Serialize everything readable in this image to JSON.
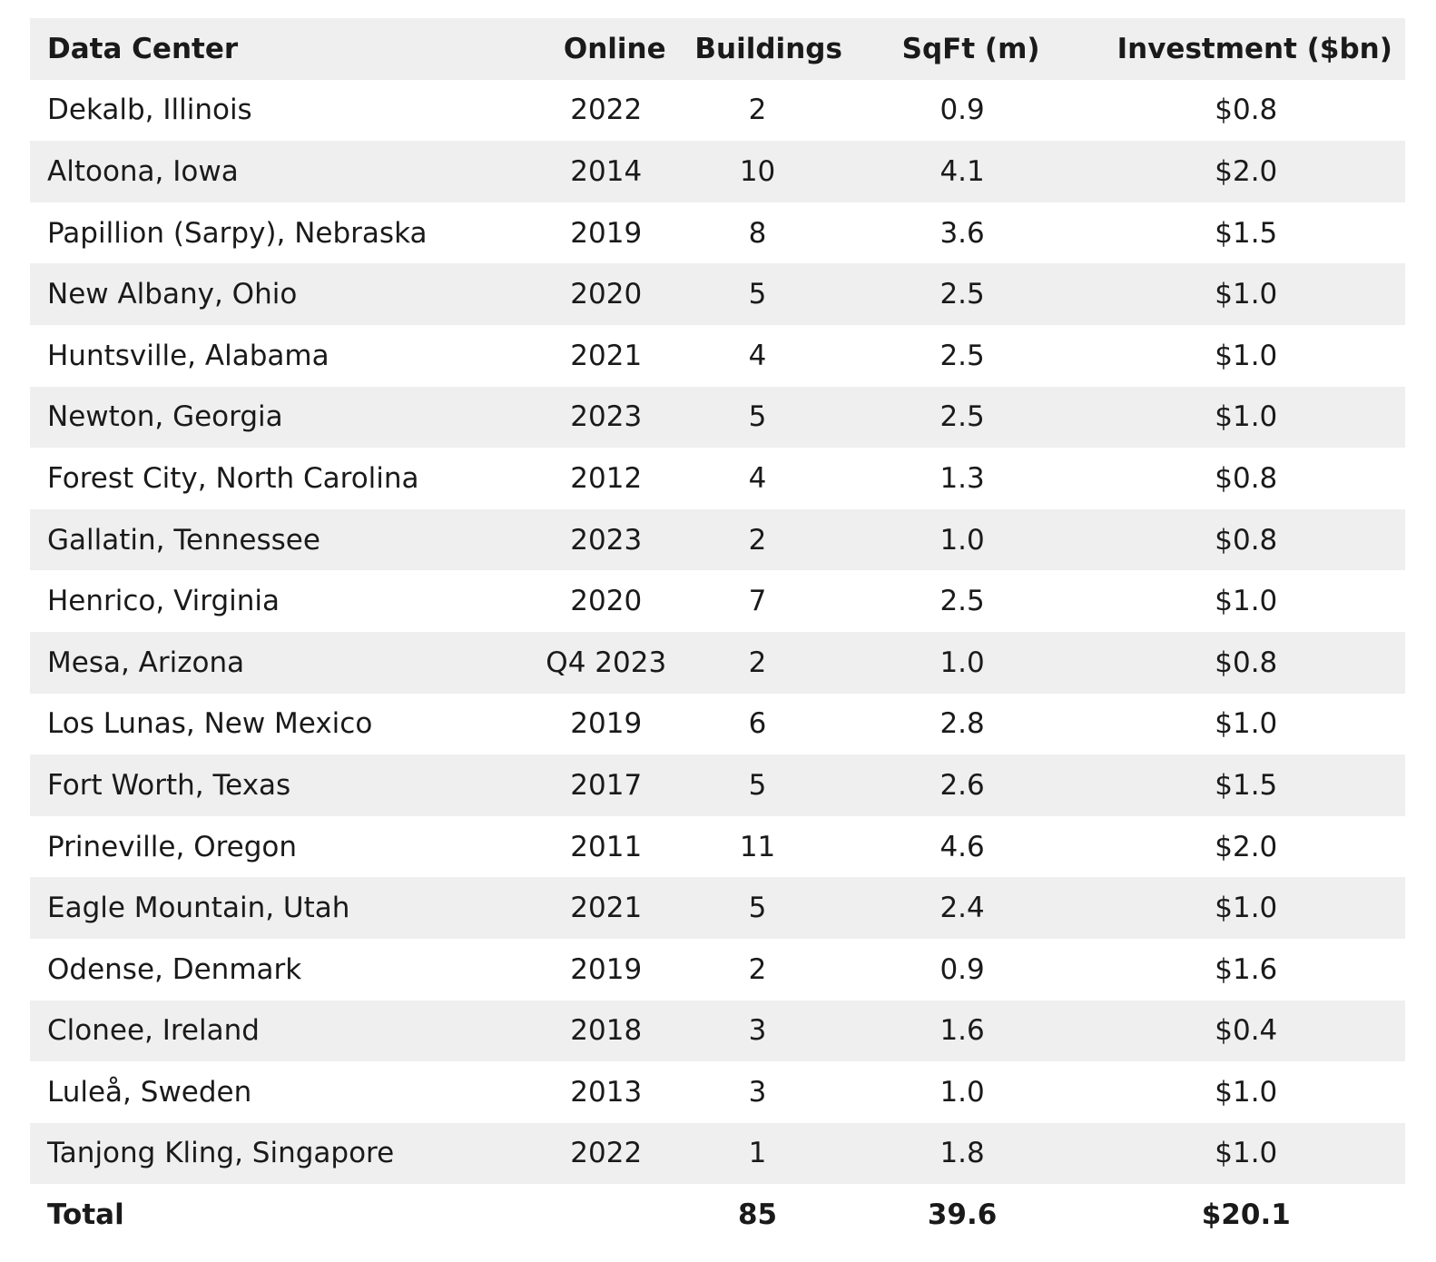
{
  "headers": [
    "Data Center",
    "Online",
    "Buildings",
    "SqFt (m)",
    "Investment ($bn)"
  ],
  "rows": [
    [
      "Dekalb, Illinois",
      "2022",
      "2",
      "0.9",
      "$0.8"
    ],
    [
      "Altoona, Iowa",
      "2014",
      "10",
      "4.1",
      "$2.0"
    ],
    [
      "Papillion (Sarpy), Nebraska",
      "2019",
      "8",
      "3.6",
      "$1.5"
    ],
    [
      "New Albany, Ohio",
      "2020",
      "5",
      "2.5",
      "$1.0"
    ],
    [
      "Huntsville, Alabama",
      "2021",
      "4",
      "2.5",
      "$1.0"
    ],
    [
      "Newton, Georgia",
      "2023",
      "5",
      "2.5",
      "$1.0"
    ],
    [
      "Forest City, North Carolina",
      "2012",
      "4",
      "1.3",
      "$0.8"
    ],
    [
      "Gallatin, Tennessee",
      "2023",
      "2",
      "1.0",
      "$0.8"
    ],
    [
      "Henrico, Virginia",
      "2020",
      "7",
      "2.5",
      "$1.0"
    ],
    [
      "Mesa, Arizona",
      "Q4 2023",
      "2",
      "1.0",
      "$0.8"
    ],
    [
      "Los Lunas, New Mexico",
      "2019",
      "6",
      "2.8",
      "$1.0"
    ],
    [
      "Fort Worth, Texas",
      "2017",
      "5",
      "2.6",
      "$1.5"
    ],
    [
      "Prineville, Oregon",
      "2011",
      "11",
      "4.6",
      "$2.0"
    ],
    [
      "Eagle Mountain, Utah",
      "2021",
      "5",
      "2.4",
      "$1.0"
    ],
    [
      "Odense, Denmark",
      "2019",
      "2",
      "0.9",
      "$1.6"
    ],
    [
      "Clonee, Ireland",
      "2018",
      "3",
      "1.6",
      "$0.4"
    ],
    [
      "Luleå, Sweden",
      "2013",
      "3",
      "1.0",
      "$1.0"
    ],
    [
      "Tanjong Kling, Singapore",
      "2022",
      "1",
      "1.8",
      "$1.0"
    ]
  ],
  "total": [
    "Total",
    "",
    "85",
    "39.6",
    "$20.1"
  ],
  "colors": {
    "shade": "#efefef",
    "text": "#1a1a1a"
  }
}
